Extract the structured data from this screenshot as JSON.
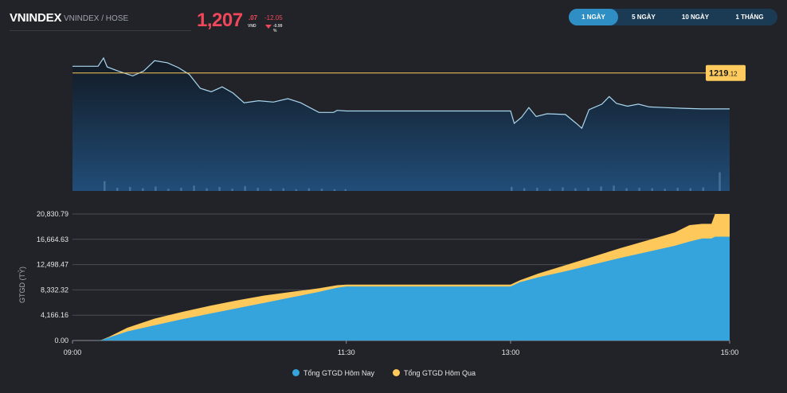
{
  "header": {
    "ticker": "VNINDEX",
    "exchange": "VNINDEX / HOSE",
    "price_int": "1,207",
    "price_dec": ".07",
    "price_unit": "VND",
    "change": "-12.05",
    "change_pct": "-0.99 %"
  },
  "tabs": [
    {
      "label": "1 NGÀY",
      "active": true
    },
    {
      "label": "5 NGÀY",
      "active": false
    },
    {
      "label": "10 NGÀY",
      "active": false
    },
    {
      "label": "1 THÁNG",
      "active": false
    }
  ],
  "colors": {
    "accent": "#2f8fc4",
    "price_line": "#a9d7ef",
    "reference": "#ffcb5e",
    "today": "#35a3dc",
    "yesterday": "#ffc85a",
    "down": "#f0485a"
  },
  "chart_data": [
    {
      "type": "line",
      "reference_value": 1219.12,
      "reference_label_int": "1219",
      "reference_label_dec": ".12",
      "y_range": [
        1202,
        1221.4
      ],
      "x_range": [
        "09:00",
        "15:00"
      ],
      "price_points": [
        [
          "09:00",
          1220.1
        ],
        [
          "09:14",
          1220.1
        ],
        [
          "09:17",
          1221.3
        ],
        [
          "09:19",
          1220.0
        ],
        [
          "09:25",
          1219.4
        ],
        [
          "09:33",
          1218.7
        ],
        [
          "09:39",
          1219.4
        ],
        [
          "09:45",
          1220.9
        ],
        [
          "09:52",
          1220.6
        ],
        [
          "09:58",
          1219.9
        ],
        [
          "10:04",
          1218.9
        ],
        [
          "10:10",
          1216.9
        ],
        [
          "10:16",
          1216.4
        ],
        [
          "10:22",
          1217.1
        ],
        [
          "10:28",
          1216.2
        ],
        [
          "10:34",
          1214.8
        ],
        [
          "10:42",
          1215.1
        ],
        [
          "10:50",
          1214.9
        ],
        [
          "10:58",
          1215.4
        ],
        [
          "11:05",
          1214.8
        ],
        [
          "11:15",
          1213.4
        ],
        [
          "11:23",
          1213.4
        ],
        [
          "11:25",
          1213.7
        ],
        [
          "11:30",
          1213.6
        ],
        [
          "13:00",
          1213.6
        ],
        [
          "13:02",
          1211.8
        ],
        [
          "13:06",
          1212.7
        ],
        [
          "13:10",
          1214.1
        ],
        [
          "13:14",
          1212.8
        ],
        [
          "13:20",
          1213.2
        ],
        [
          "13:30",
          1213.1
        ],
        [
          "13:36",
          1211.8
        ],
        [
          "13:39",
          1211.1
        ],
        [
          "13:43",
          1213.8
        ],
        [
          "13:50",
          1214.6
        ],
        [
          "13:54",
          1215.7
        ],
        [
          "13:58",
          1214.7
        ],
        [
          "14:04",
          1214.3
        ],
        [
          "14:10",
          1214.6
        ],
        [
          "14:16",
          1214.2
        ],
        [
          "14:24",
          1214.1
        ],
        [
          "14:34",
          1214.0
        ],
        [
          "14:45",
          1213.9
        ],
        [
          "15:00",
          1213.9
        ]
      ],
      "volume_bars": [
        [
          "09:17",
          0.22
        ],
        [
          "09:24",
          0.07
        ],
        [
          "09:31",
          0.09
        ],
        [
          "09:38",
          0.06
        ],
        [
          "09:45",
          0.1
        ],
        [
          "09:52",
          0.05
        ],
        [
          "09:59",
          0.07
        ],
        [
          "10:06",
          0.12
        ],
        [
          "10:13",
          0.06
        ],
        [
          "10:20",
          0.09
        ],
        [
          "10:27",
          0.05
        ],
        [
          "10:34",
          0.11
        ],
        [
          "10:41",
          0.07
        ],
        [
          "10:48",
          0.05
        ],
        [
          "10:55",
          0.06
        ],
        [
          "11:02",
          0.04
        ],
        [
          "11:09",
          0.06
        ],
        [
          "11:16",
          0.05
        ],
        [
          "11:23",
          0.04
        ],
        [
          "11:29",
          0.04
        ],
        [
          "13:00",
          0.09
        ],
        [
          "13:07",
          0.06
        ],
        [
          "13:14",
          0.07
        ],
        [
          "13:21",
          0.05
        ],
        [
          "13:28",
          0.08
        ],
        [
          "13:35",
          0.06
        ],
        [
          "13:42",
          0.07
        ],
        [
          "13:49",
          0.1
        ],
        [
          "13:56",
          0.12
        ],
        [
          "14:03",
          0.06
        ],
        [
          "14:10",
          0.07
        ],
        [
          "14:17",
          0.06
        ],
        [
          "14:24",
          0.05
        ],
        [
          "14:31",
          0.07
        ],
        [
          "14:38",
          0.06
        ],
        [
          "14:45",
          0.08
        ],
        [
          "14:54",
          0.42
        ]
      ]
    },
    {
      "type": "area",
      "ylabel": "GTGD (TỶ)",
      "ylim": [
        0,
        20830.79
      ],
      "y_ticks": [
        "0.00",
        "4,166.16",
        "8,332.32",
        "12,498.47",
        "16,664.63",
        "20,830.79"
      ],
      "x_ticks": [
        "09:00",
        "11:30",
        "13:00",
        "15:00"
      ],
      "series": [
        {
          "name": "Tổng GTGD Hôm Nay",
          "points": [
            [
              "09:00",
              0
            ],
            [
              "09:15",
              0
            ],
            [
              "09:20",
              500
            ],
            [
              "09:30",
              1500
            ],
            [
              "09:45",
              2500
            ],
            [
              "10:00",
              3500
            ],
            [
              "10:15",
              4400
            ],
            [
              "10:30",
              5300
            ],
            [
              "10:45",
              6200
            ],
            [
              "11:00",
              7100
            ],
            [
              "11:15",
              8000
            ],
            [
              "11:25",
              8700
            ],
            [
              "11:30",
              8900
            ],
            [
              "13:00",
              8900
            ],
            [
              "13:05",
              9600
            ],
            [
              "13:15",
              10400
            ],
            [
              "13:30",
              11400
            ],
            [
              "13:45",
              12500
            ],
            [
              "14:00",
              13600
            ],
            [
              "14:15",
              14600
            ],
            [
              "14:30",
              15600
            ],
            [
              "14:38",
              16300
            ],
            [
              "14:45",
              16800
            ],
            [
              "14:50",
              16800
            ],
            [
              "14:52",
              17100
            ],
            [
              "15:00",
              17100
            ]
          ]
        },
        {
          "name": "Tổng GTGD Hôm Qua",
          "points": [
            [
              "09:00",
              0
            ],
            [
              "09:15",
              0
            ],
            [
              "09:20",
              600
            ],
            [
              "09:30",
              2100
            ],
            [
              "09:45",
              3600
            ],
            [
              "10:00",
              4700
            ],
            [
              "10:15",
              5700
            ],
            [
              "10:30",
              6600
            ],
            [
              "10:45",
              7400
            ],
            [
              "11:00",
              8000
            ],
            [
              "11:15",
              8600
            ],
            [
              "11:25",
              9100
            ],
            [
              "11:30",
              9200
            ],
            [
              "13:00",
              9200
            ],
            [
              "13:05",
              9900
            ],
            [
              "13:15",
              11000
            ],
            [
              "13:30",
              12400
            ],
            [
              "13:45",
              13800
            ],
            [
              "14:00",
              15200
            ],
            [
              "14:15",
              16500
            ],
            [
              "14:30",
              17800
            ],
            [
              "14:38",
              19000
            ],
            [
              "14:45",
              19200
            ],
            [
              "14:50",
              19200
            ],
            [
              "14:52",
              20830
            ],
            [
              "15:00",
              20830
            ]
          ]
        }
      ],
      "legend": "bottom-center",
      "grid": true
    }
  ]
}
